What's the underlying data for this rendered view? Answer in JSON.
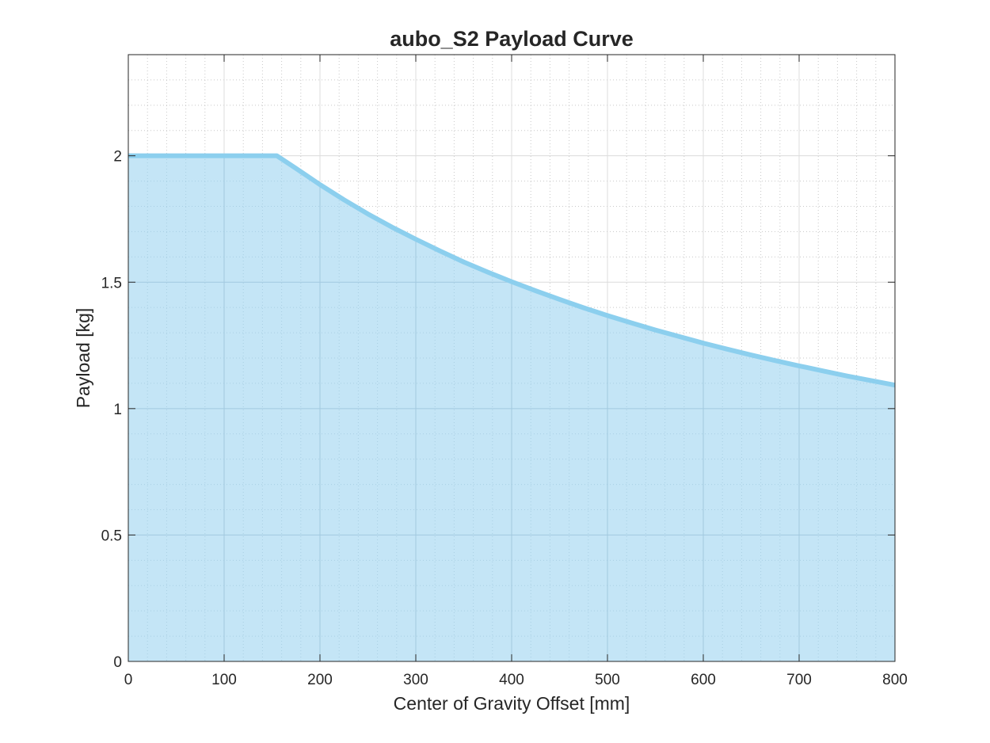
{
  "chart_data": {
    "type": "area",
    "title": "aubo_S2 Payload Curve",
    "xlabel": "Center of Gravity Offset [mm]",
    "ylabel": "Payload [kg]",
    "xlim": [
      0,
      800
    ],
    "ylim": [
      0,
      2.4
    ],
    "xticks": [
      0,
      100,
      200,
      300,
      400,
      500,
      600,
      700,
      800
    ],
    "xtick_labels": [
      "0",
      "100",
      "200",
      "300",
      "400",
      "500",
      "600",
      "700",
      "800"
    ],
    "yticks": [
      0,
      0.5,
      1,
      1.5,
      2
    ],
    "ytick_labels": [
      "0",
      "0.5",
      "1",
      "1.5",
      "2"
    ],
    "grid": true,
    "minor_grid": true,
    "series": [
      {
        "x": [
          0,
          50,
          100,
          155,
          175,
          200,
          225,
          250,
          275,
          300,
          325,
          350,
          375,
          400,
          425,
          450,
          475,
          500,
          525,
          550,
          575,
          600,
          625,
          650,
          675,
          700,
          725,
          750,
          775,
          800
        ],
        "values": [
          2,
          2,
          2,
          2,
          1.95,
          1.886,
          1.826,
          1.77,
          1.718,
          1.67,
          1.624,
          1.58,
          1.54,
          1.502,
          1.466,
          1.432,
          1.399,
          1.368,
          1.339,
          1.311,
          1.285,
          1.259,
          1.235,
          1.212,
          1.19,
          1.169,
          1.149,
          1.129,
          1.111,
          1.093
        ]
      }
    ],
    "line_color": "#8ccfee",
    "fill_color": "#c4e5f6"
  }
}
